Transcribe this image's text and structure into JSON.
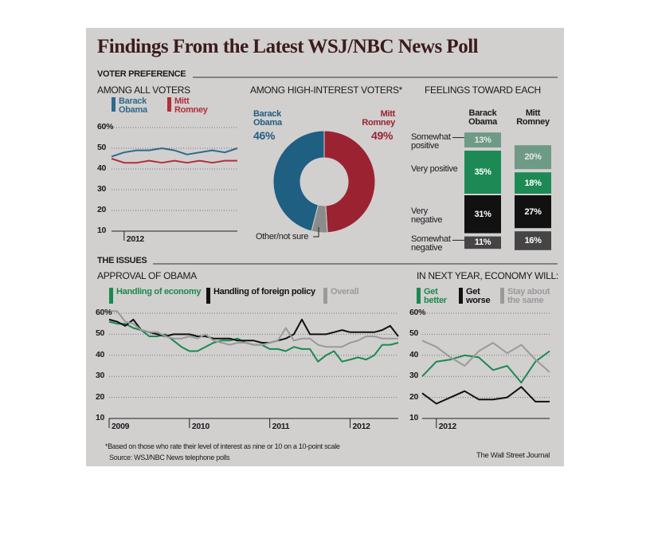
{
  "header": {
    "title": "Findings From the Latest WSJ/NBC News Poll"
  },
  "sections": [
    "VOTER PREFERENCE",
    "THE ISSUES"
  ],
  "footnote": "*Based on those who rate their level of interest as nine or 10 on a 10-point scale",
  "source": "Source: WSJ/NBC News telephone polls",
  "credit": "The Wall Street Journal",
  "chart_data": [
    {
      "type": "line",
      "title": "AMONG ALL VOTERS",
      "categories": [
        null,
        "2012",
        null,
        null,
        null,
        null,
        null,
        null,
        null,
        null,
        null
      ],
      "series": [
        {
          "name": "Barack Obama",
          "color": "#2b6a8c",
          "values": [
            46,
            48,
            49,
            49,
            50,
            49,
            47,
            48,
            49,
            48,
            50
          ]
        },
        {
          "name": "Mitt Romney",
          "color": "#b0303b",
          "values": [
            45,
            43,
            43,
            44,
            43,
            44,
            43,
            44,
            43,
            44,
            44
          ]
        }
      ],
      "ylim": [
        10,
        60
      ],
      "yticks": [
        10,
        20,
        30,
        40,
        50,
        {
          "value": 60,
          "label": "60%"
        }
      ],
      "grid": true
    },
    {
      "type": "donut",
      "title": "AMONG HIGH-INTEREST VOTERS*",
      "categories": [
        "Barack Obama",
        "Mitt Romney",
        "Other/not sure"
      ],
      "values": [
        46,
        49,
        5
      ],
      "value_labels": [
        "46%",
        "49%",
        null
      ],
      "colors": [
        "#1f5f82",
        "#9b2331",
        "#8c8c8c"
      ]
    },
    {
      "type": "diverging-stacked-bar",
      "title": "FEELINGS TOWARD EACH",
      "categories": [
        "Barack Obama",
        "Mitt Romney"
      ],
      "series": [
        {
          "name": "Somewhat positive",
          "color": "#6e9a86",
          "values": [
            13,
            20
          ],
          "value_labels": [
            "13%",
            "20%"
          ]
        },
        {
          "name": "Very positive",
          "color": "#1d8a55",
          "values": [
            35,
            18
          ],
          "value_labels": [
            "35%",
            "18%"
          ]
        },
        {
          "name": "Very negative",
          "color": "#111111",
          "values": [
            31,
            27
          ],
          "value_labels": [
            "31%",
            "27%"
          ]
        },
        {
          "name": "Somewhat negative",
          "color": "#454545",
          "values": [
            11,
            16
          ],
          "value_labels": [
            "11%",
            "16%"
          ]
        }
      ]
    },
    {
      "type": "line",
      "title": "APPROVAL OF OBAMA",
      "categories": [
        "2009",
        null,
        null,
        null,
        null,
        null,
        null,
        null,
        null,
        null,
        "2010",
        null,
        null,
        null,
        null,
        null,
        null,
        null,
        null,
        null,
        "2011",
        null,
        null,
        null,
        null,
        null,
        null,
        null,
        null,
        null,
        "2012",
        null,
        null,
        null,
        null,
        null,
        null
      ],
      "series": [
        {
          "name": "Handling of economy",
          "color": "#1a8a50",
          "values": [
            56,
            55,
            55,
            53,
            52,
            49,
            49,
            50,
            47,
            44,
            42,
            42,
            44,
            46,
            47,
            47,
            48,
            46,
            45,
            45,
            43,
            43,
            42,
            44,
            43,
            43,
            37,
            40,
            42,
            37,
            38,
            39,
            38,
            40,
            45,
            45,
            46
          ]
        },
        {
          "name": "Handling of foreign policy",
          "color": "#111111",
          "values": [
            57,
            56,
            54,
            57,
            52,
            51,
            50,
            49,
            50,
            50,
            50,
            49,
            49,
            48,
            48,
            48,
            47,
            47,
            47,
            46,
            46,
            47,
            48,
            50,
            57,
            50,
            50,
            50,
            51,
            52,
            51,
            51,
            51,
            51,
            52,
            54,
            49
          ]
        },
        {
          "name": "Overall",
          "color": "#9a9a9a",
          "values": [
            61,
            61,
            56,
            55,
            52,
            51,
            51,
            49,
            48,
            48,
            49,
            48,
            50,
            47,
            46,
            45,
            46,
            46,
            45,
            45,
            46,
            47,
            53,
            47,
            48,
            48,
            45,
            44,
            44,
            44,
            46,
            47,
            49,
            49,
            48,
            48,
            48
          ]
        }
      ],
      "ylim": [
        10,
        60
      ],
      "yticks": [
        10,
        20,
        30,
        40,
        50,
        {
          "value": 60,
          "label": "60%"
        }
      ],
      "grid": true
    },
    {
      "type": "line",
      "title": "IN NEXT YEAR, ECONOMY WILL:",
      "categories": [
        null,
        "2012",
        null,
        null,
        null,
        null,
        null,
        null,
        null,
        null
      ],
      "series": [
        {
          "name": "Get better",
          "color": "#1a8a50",
          "values": [
            30,
            37,
            38,
            40,
            39,
            33,
            35,
            27,
            37,
            42
          ]
        },
        {
          "name": "Get worse",
          "color": "#111111",
          "values": [
            22,
            17,
            20,
            23,
            19,
            19,
            20,
            25,
            18,
            18
          ]
        },
        {
          "name": "Stay about the same",
          "color": "#9a9a9a",
          "values": [
            47,
            44,
            39,
            35,
            42,
            46,
            41,
            45,
            38,
            32
          ]
        }
      ],
      "ylim": [
        10,
        60
      ],
      "yticks": [
        10,
        20,
        30,
        40,
        50,
        {
          "value": 60,
          "label": "60%"
        }
      ],
      "grid": true
    }
  ]
}
